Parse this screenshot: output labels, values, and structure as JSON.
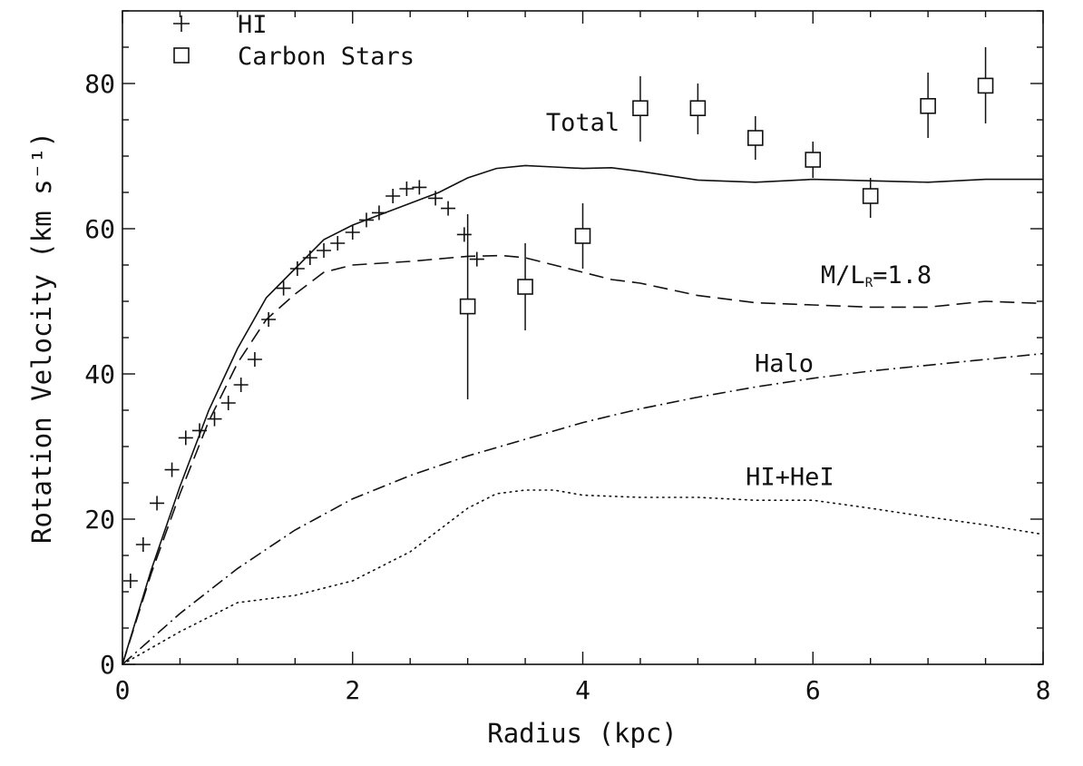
{
  "chart_data": {
    "type": "line",
    "xlabel": "Radius (kpc)",
    "ylabel": "Rotation Velocity (km s⁻¹)",
    "xlim": [
      0,
      8
    ],
    "ylim": [
      0,
      90
    ],
    "xticks": [
      0,
      2,
      4,
      6,
      8
    ],
    "yticks": [
      0,
      20,
      40,
      60,
      80
    ],
    "grid": false,
    "legend_position": "top-left",
    "legend": [
      {
        "marker": "plus",
        "label": "HI"
      },
      {
        "marker": "square",
        "label": "Carbon Stars"
      }
    ],
    "points": [
      {
        "name": "HI",
        "marker": "plus",
        "x": [
          0.07,
          0.18,
          0.3,
          0.43,
          0.55,
          0.67,
          0.8,
          0.92,
          1.03,
          1.15,
          1.27,
          1.4,
          1.52,
          1.63,
          1.75,
          1.87,
          2.0,
          2.12,
          2.23,
          2.35,
          2.47,
          2.58,
          2.72,
          2.83,
          2.97,
          3.08
        ],
        "y": [
          11.5,
          16.5,
          22.2,
          26.8,
          31.2,
          32.2,
          33.8,
          36.0,
          38.5,
          42.0,
          47.5,
          51.8,
          54.5,
          56.0,
          57.0,
          58.0,
          59.5,
          61.2,
          62.2,
          64.5,
          65.5,
          65.7,
          64.2,
          62.8,
          59.2,
          55.8
        ]
      },
      {
        "name": "Carbon Stars",
        "marker": "square",
        "x": [
          3.0,
          3.5,
          4.0,
          4.5,
          5.0,
          5.5,
          6.0,
          6.5,
          7.0,
          7.5
        ],
        "y": [
          49.3,
          52.0,
          59.0,
          76.6,
          76.6,
          72.5,
          69.5,
          64.5,
          76.9,
          79.7
        ],
        "yerr_low": [
          36.5,
          46.0,
          54.5,
          72.0,
          73.0,
          69.5,
          67.0,
          61.5,
          72.5,
          74.5
        ],
        "yerr_high": [
          62.0,
          58.0,
          63.5,
          81.0,
          80.0,
          75.5,
          72.0,
          67.0,
          81.5,
          85.0
        ]
      }
    ],
    "series": [
      {
        "name": "Total",
        "style": "solid",
        "x": [
          0,
          0.25,
          0.5,
          0.75,
          1.0,
          1.25,
          1.5,
          1.75,
          2.0,
          2.25,
          2.5,
          2.75,
          3.0,
          3.25,
          3.5,
          3.75,
          4.0,
          4.25,
          4.5,
          5.0,
          5.5,
          6.0,
          6.5,
          7.0,
          7.5,
          8.0
        ],
        "y": [
          0,
          13,
          24.5,
          35,
          43.5,
          50.5,
          54.5,
          58.5,
          60.5,
          62.0,
          63.5,
          65.0,
          67.0,
          68.3,
          68.7,
          68.5,
          68.3,
          68.4,
          67.9,
          66.7,
          66.4,
          66.8,
          66.6,
          66.4,
          66.8,
          66.8
        ]
      },
      {
        "name": "M/L_R=1.8",
        "style": "dashed",
        "x": [
          0,
          0.25,
          0.5,
          0.75,
          1.0,
          1.25,
          1.5,
          1.75,
          2.0,
          2.5,
          3.0,
          3.3,
          3.5,
          3.75,
          4.0,
          4.25,
          4.5,
          5.0,
          5.5,
          6.0,
          6.5,
          7.0,
          7.5,
          8.0
        ],
        "y": [
          0,
          12.5,
          23.5,
          33.5,
          41.5,
          47.5,
          51.0,
          54.0,
          55.0,
          55.5,
          56.2,
          56.3,
          56.0,
          55.0,
          54.0,
          53.0,
          52.5,
          50.8,
          49.8,
          49.5,
          49.2,
          49.2,
          50.0,
          49.7
        ]
      },
      {
        "name": "Halo",
        "style": "dashdot",
        "x": [
          0,
          0.5,
          1.0,
          1.5,
          2.0,
          2.5,
          3.0,
          3.5,
          4.0,
          4.5,
          5.0,
          5.5,
          6.0,
          6.5,
          7.0,
          7.5,
          8.0
        ],
        "y": [
          0,
          7.0,
          13.2,
          18.5,
          22.8,
          26.0,
          28.7,
          31.0,
          33.3,
          35.2,
          36.8,
          38.2,
          39.4,
          40.4,
          41.2,
          42.0,
          42.8
        ]
      },
      {
        "name": "HI+HeI",
        "style": "dotted",
        "x": [
          0,
          0.5,
          1.0,
          1.25,
          1.5,
          2.0,
          2.5,
          3.0,
          3.25,
          3.5,
          3.75,
          4.0,
          4.5,
          5.0,
          5.5,
          6.0,
          6.5,
          7.0,
          7.5,
          8.0
        ],
        "y": [
          0,
          4.5,
          8.5,
          9.0,
          9.5,
          11.5,
          15.5,
          21.5,
          23.5,
          24.0,
          24.0,
          23.3,
          23.0,
          23.0,
          22.6,
          22.6,
          21.5,
          20.3,
          19.2,
          17.9
        ]
      }
    ],
    "curve_labels": [
      {
        "text": "Total",
        "x": 4.0,
        "y": 73.5
      },
      {
        "text": "M/L",
        "sub": "R",
        "rest": "=1.8",
        "x": 6.55,
        "y": 52.5
      },
      {
        "text": "Halo",
        "x": 5.75,
        "y": 40.3
      },
      {
        "text": "HI+HeI",
        "x": 5.8,
        "y": 24.7
      }
    ]
  }
}
